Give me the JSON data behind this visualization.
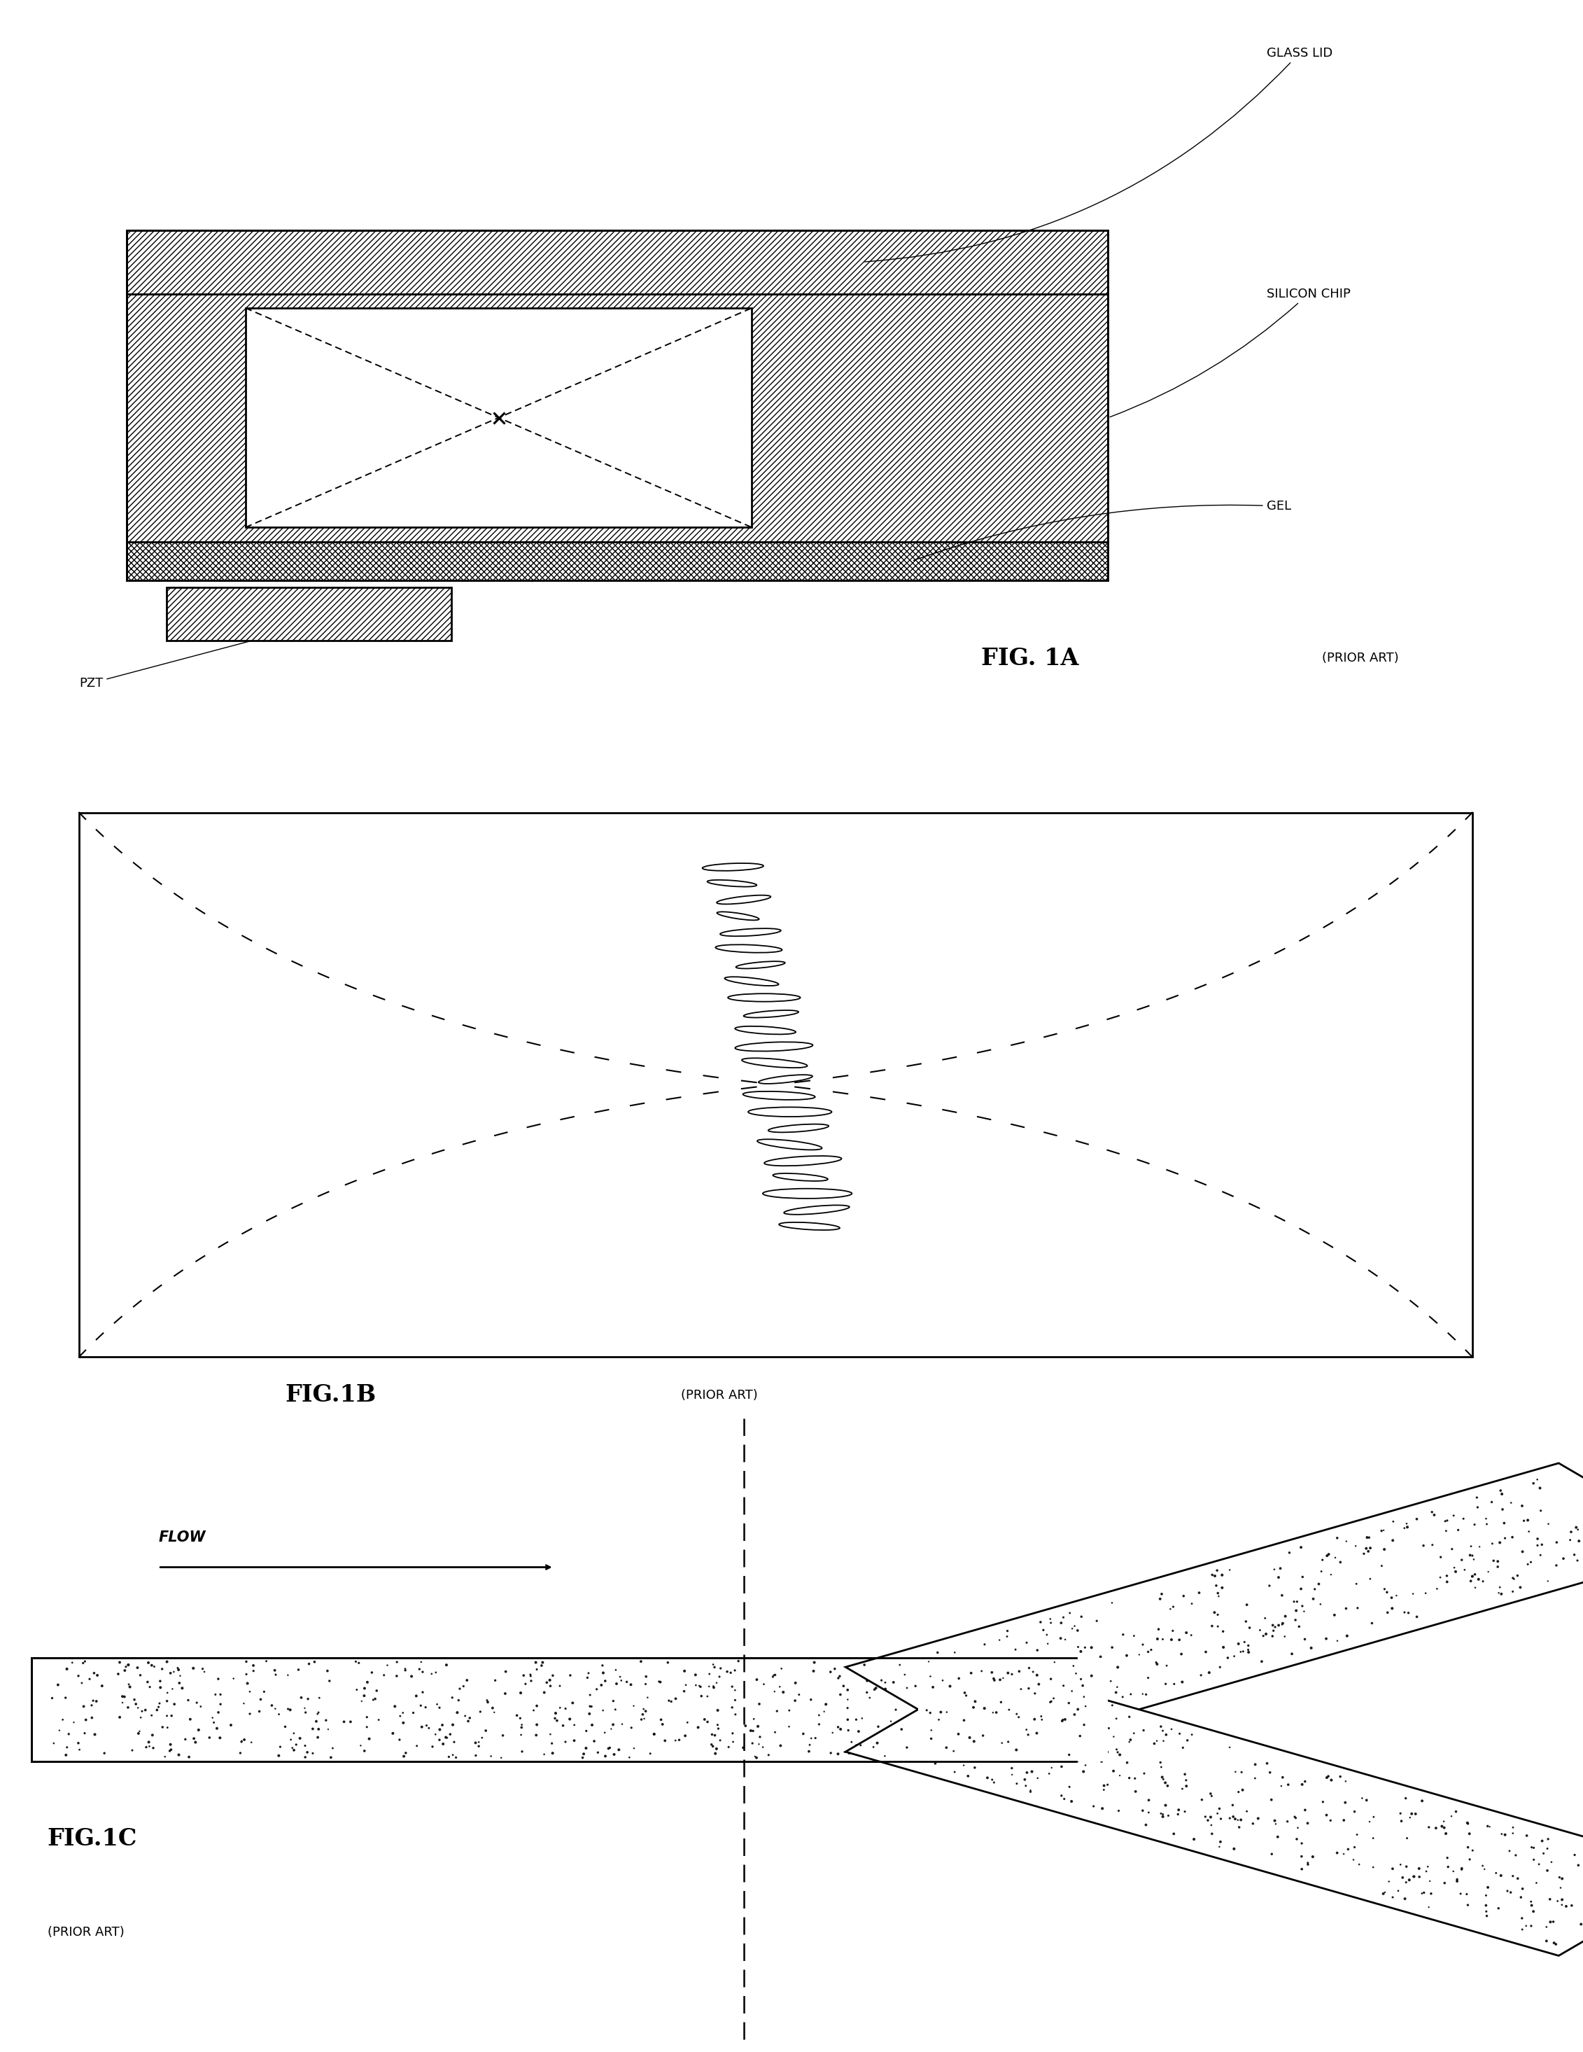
{
  "bg_color": "#ffffff",
  "fig_width": 22.62,
  "fig_height": 29.31,
  "panels": {
    "fig1a": {
      "title": "FIG. 1A",
      "prior_art": "(PRIOR ART)",
      "glass_lid": "GLASS LID",
      "silicon_chip": "SILICON CHIP",
      "gel": "GEL",
      "pzt": "PZT"
    },
    "fig1b": {
      "title": "FIG.1B",
      "prior_art": "(PRIOR ART)"
    },
    "fig1c": {
      "title": "FIG.1C",
      "prior_art": "(PRIOR ART)",
      "flow_label": "FLOW"
    }
  },
  "particles_1b": [
    [
      0.01,
      0.9,
      0.022,
      0.038,
      5
    ],
    [
      -0.02,
      0.87,
      0.018,
      0.03,
      -10
    ],
    [
      0.03,
      0.84,
      0.02,
      0.034,
      15
    ],
    [
      -0.03,
      0.81,
      0.016,
      0.028,
      -20
    ],
    [
      0.025,
      0.78,
      0.022,
      0.036,
      8
    ],
    [
      -0.01,
      0.75,
      0.024,
      0.04,
      -5
    ],
    [
      0.04,
      0.72,
      0.018,
      0.03,
      12
    ],
    [
      -0.04,
      0.69,
      0.02,
      0.034,
      -15
    ],
    [
      0.015,
      0.66,
      0.026,
      0.042,
      0
    ],
    [
      0.035,
      0.63,
      0.02,
      0.032,
      10
    ],
    [
      -0.025,
      0.6,
      0.022,
      0.038,
      -8
    ],
    [
      0.005,
      0.57,
      0.028,
      0.046,
      5
    ],
    [
      -0.015,
      0.54,
      0.024,
      0.04,
      -12
    ],
    [
      0.03,
      0.51,
      0.02,
      0.034,
      15
    ],
    [
      -0.035,
      0.48,
      0.026,
      0.042,
      -5
    ],
    [
      0.01,
      0.45,
      0.03,
      0.05,
      0
    ],
    [
      0.04,
      0.42,
      0.022,
      0.036,
      10
    ],
    [
      -0.04,
      0.39,
      0.024,
      0.04,
      -15
    ],
    [
      0.02,
      0.36,
      0.028,
      0.046,
      8
    ],
    [
      -0.02,
      0.33,
      0.02,
      0.034,
      -10
    ],
    [
      0.0,
      0.3,
      0.032,
      0.052,
      0
    ],
    [
      0.035,
      0.27,
      0.024,
      0.038,
      12
    ],
    [
      -0.035,
      0.24,
      0.022,
      0.036,
      -8
    ]
  ]
}
